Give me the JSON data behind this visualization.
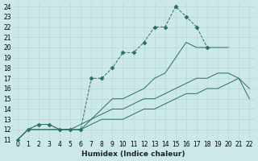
{
  "background_color": "#cce8e8",
  "grid_color": "#b8d8d8",
  "line_color": "#2a6e6a",
  "xlim": [
    -0.5,
    22.5
  ],
  "ylim": [
    11,
    24.3
  ],
  "xticks": [
    0,
    1,
    2,
    3,
    4,
    5,
    6,
    7,
    8,
    9,
    10,
    11,
    12,
    13,
    14,
    15,
    16,
    17,
    18,
    19,
    20,
    21,
    22
  ],
  "yticks": [
    11,
    12,
    13,
    14,
    15,
    16,
    17,
    18,
    19,
    20,
    21,
    22,
    23,
    24
  ],
  "xlabel": "Humidex (Indice chaleur)",
  "series": [
    {
      "x": [
        0,
        1,
        2,
        3,
        4,
        5,
        6,
        7,
        8,
        9,
        10,
        11,
        12,
        13,
        14,
        15,
        16,
        17,
        18
      ],
      "y": [
        11,
        12,
        12.5,
        12.5,
        12,
        12,
        12,
        17,
        17,
        18,
        19.5,
        19.5,
        20.5,
        22,
        22,
        24,
        23,
        22,
        20
      ],
      "linestyle": "--",
      "marker": true
    },
    {
      "x": [
        0,
        1,
        2,
        3,
        4,
        5,
        6,
        7,
        8,
        9,
        10,
        11,
        12,
        13,
        14,
        15,
        16,
        17,
        18,
        19,
        20
      ],
      "y": [
        11,
        12,
        12.5,
        12.5,
        12,
        12,
        12,
        13,
        14,
        15,
        15,
        15.5,
        16,
        17,
        17.5,
        19,
        20.5,
        20,
        20,
        20,
        20
      ],
      "linestyle": "-",
      "marker": false
    },
    {
      "x": [
        0,
        1,
        2,
        3,
        4,
        5,
        6,
        7,
        8,
        9,
        10,
        11,
        12,
        13,
        14,
        15,
        16,
        17,
        18,
        19,
        20,
        21,
        22
      ],
      "y": [
        11,
        12,
        12,
        12,
        12,
        12,
        12.5,
        13,
        13.5,
        14,
        14,
        14.5,
        15,
        15,
        15.5,
        16,
        16.5,
        17,
        17,
        17.5,
        17.5,
        17,
        16
      ],
      "linestyle": "-",
      "marker": false
    },
    {
      "x": [
        0,
        1,
        2,
        3,
        4,
        5,
        6,
        7,
        8,
        9,
        10,
        11,
        12,
        13,
        14,
        15,
        16,
        17,
        18,
        19,
        20,
        21,
        22
      ],
      "y": [
        11,
        12,
        12,
        12,
        12,
        12,
        12,
        12.5,
        13,
        13,
        13,
        13.5,
        14,
        14,
        14.5,
        15,
        15.5,
        15.5,
        16,
        16,
        16.5,
        17,
        15
      ],
      "linestyle": "-",
      "marker": false
    }
  ]
}
